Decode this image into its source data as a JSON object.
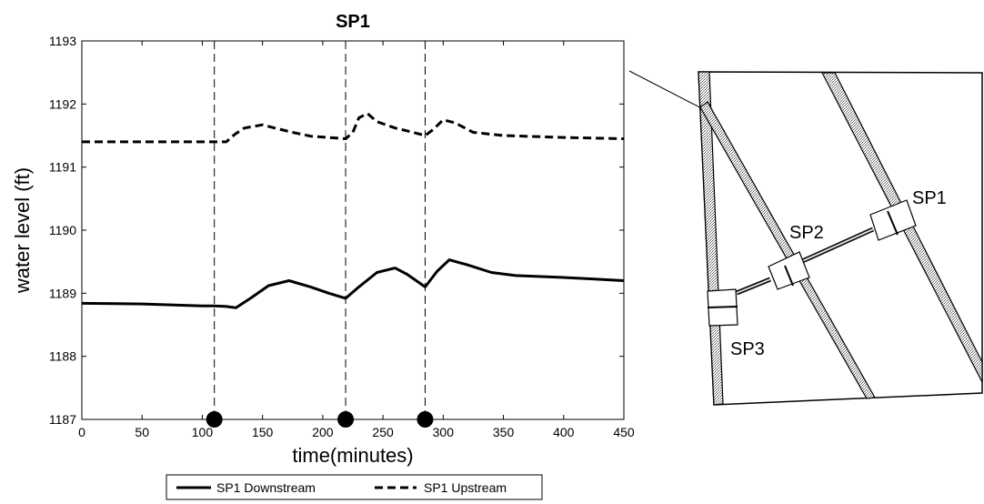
{
  "chart_data": {
    "type": "line",
    "title": "SP1",
    "xlabel": "time(minutes)",
    "ylabel": "water level (ft)",
    "xlim": [
      0,
      450
    ],
    "ylim": [
      1187,
      1193
    ],
    "xticks": [
      0,
      50,
      100,
      150,
      200,
      250,
      300,
      350,
      400,
      450
    ],
    "yticks": [
      1187,
      1188,
      1189,
      1190,
      1191,
      1192,
      1193
    ],
    "grid": false,
    "legend_position": "bottom",
    "event_markers_x": [
      110,
      219,
      285
    ],
    "series": [
      {
        "name": "SP1 Downstream",
        "style": "solid",
        "x": [
          0,
          50,
          100,
          110,
          120,
          128,
          140,
          155,
          172,
          190,
          205,
          219,
          230,
          245,
          260,
          270,
          285,
          295,
          305,
          320,
          340,
          360,
          400,
          450
        ],
        "y": [
          1188.84,
          1188.83,
          1188.8,
          1188.8,
          1188.79,
          1188.77,
          1188.92,
          1189.12,
          1189.2,
          1189.1,
          1189.0,
          1188.92,
          1189.1,
          1189.33,
          1189.4,
          1189.3,
          1189.1,
          1189.35,
          1189.53,
          1189.45,
          1189.33,
          1189.28,
          1189.25,
          1189.2
        ]
      },
      {
        "name": "SP1 Upstream",
        "style": "dashed",
        "x": [
          0,
          50,
          100,
          110,
          120,
          127,
          135,
          150,
          160,
          175,
          190,
          205,
          219,
          225,
          230,
          237,
          245,
          260,
          275,
          285,
          292,
          300,
          310,
          325,
          350,
          400,
          450
        ],
        "y": [
          1191.4,
          1191.4,
          1191.4,
          1191.4,
          1191.4,
          1191.52,
          1191.62,
          1191.67,
          1191.62,
          1191.55,
          1191.49,
          1191.47,
          1191.45,
          1191.55,
          1191.78,
          1191.85,
          1191.72,
          1191.62,
          1191.55,
          1191.5,
          1191.6,
          1191.75,
          1191.7,
          1191.55,
          1191.5,
          1191.47,
          1191.45
        ]
      }
    ]
  },
  "diagram": {
    "labels": [
      "SP1",
      "SP2",
      "SP3"
    ]
  }
}
